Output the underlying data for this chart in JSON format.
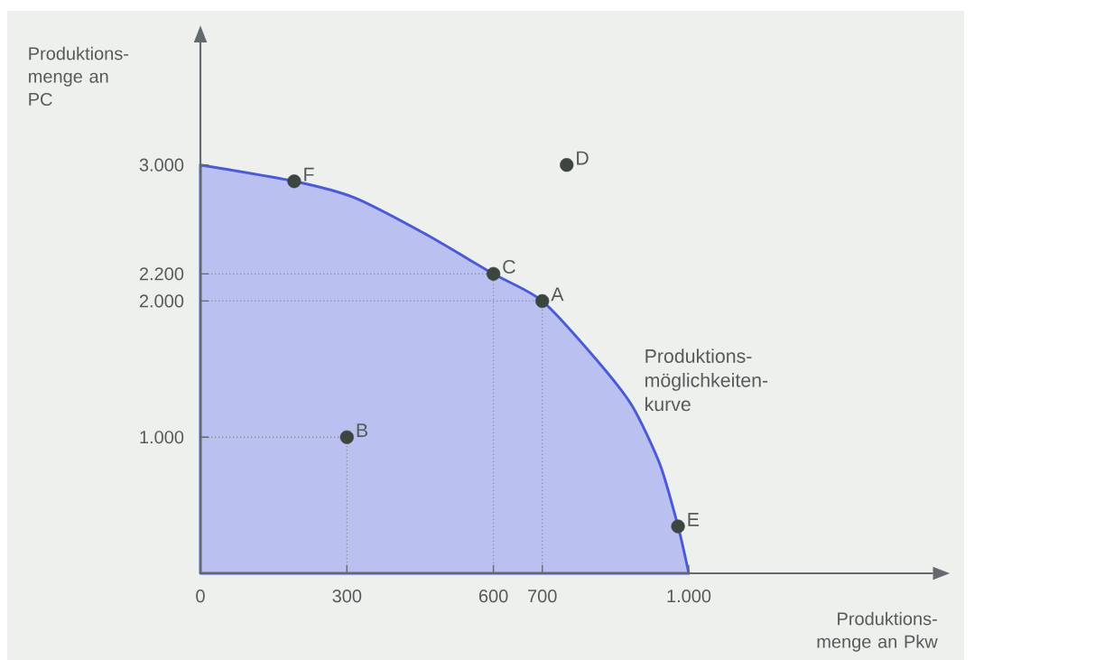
{
  "chart_data": {
    "type": "line",
    "xlabel": "Produktions-menge an Pkw",
    "ylabel": "Produktions-menge an PC",
    "xlim": [
      0,
      1500
    ],
    "ylim": [
      0,
      3900
    ],
    "xticks": [
      0,
      300,
      600,
      700,
      {
        "value": 1000,
        "label": "1.000"
      }
    ],
    "yticks": [
      {
        "value": 1000,
        "label": "1.000"
      },
      {
        "value": 2000,
        "label": "2.000"
      },
      {
        "value": 2200,
        "label": "2.200"
      },
      {
        "value": 3000,
        "label": "3.000"
      }
    ],
    "series": [
      {
        "type": "area",
        "color": "#4a5ad8",
        "x": [
          0,
          192,
          315,
          457,
          600,
          700,
          813,
          884,
          941,
          978,
          1000
        ],
        "values": [
          3000,
          2880,
          2760,
          2500,
          2200,
          2000,
          1560,
          1230,
          800,
          345,
          0
        ]
      },
      {
        "line_style": "dotted",
        "color": "#8a8f99",
        "x": [
          0,
          600,
          600
        ],
        "values": [
          2200,
          2200,
          0
        ]
      },
      {
        "line_style": "dotted",
        "color": "#8a8f99",
        "x": [
          0,
          700,
          700
        ],
        "values": [
          2000,
          2000,
          0
        ]
      },
      {
        "line_style": "dotted",
        "color": "#8a8f99",
        "x": [
          0,
          300,
          300
        ],
        "values": [
          1000,
          1000,
          0
        ]
      },
      {
        "type": "scatter",
        "marker": "circle",
        "color": "#3c4540",
        "x": [
          192,
          750,
          600,
          700,
          300,
          978
        ],
        "values": [
          2880,
          3000,
          2200,
          2000,
          1000,
          345
        ]
      }
    ],
    "annotations": [
      {
        "text": "F",
        "x": 192,
        "y": 2880
      },
      {
        "text": "D",
        "x": 750,
        "y": 3000
      },
      {
        "text": "C",
        "x": 600,
        "y": 2200
      },
      {
        "text": "A",
        "x": 700,
        "y": 2000
      },
      {
        "text": "B",
        "x": 300,
        "y": 1000
      },
      {
        "text": "E",
        "x": 978,
        "y": 345
      },
      {
        "text": "Produktions-möglichkeiten-kurve",
        "x": 891,
        "y": 1190
      }
    ]
  }
}
